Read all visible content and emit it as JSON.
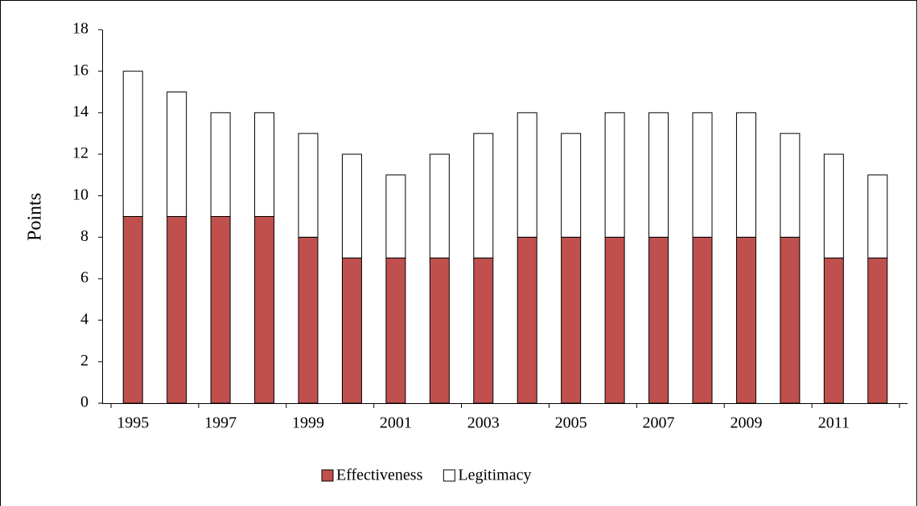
{
  "chart_data": {
    "type": "stacked-bar",
    "y_label": "Points",
    "categories": [
      "1995",
      null,
      "1997",
      null,
      "1999",
      null,
      "2001",
      null,
      "2003",
      null,
      "2005",
      null,
      "2007",
      null,
      "2009",
      null,
      "2011",
      null
    ],
    "series": [
      {
        "name": "Effectiveness",
        "color": "#c0504d",
        "values": [
          9,
          9,
          9,
          9,
          8,
          7,
          7,
          7,
          7,
          8,
          8,
          8,
          8,
          8,
          8,
          8,
          7,
          7
        ]
      },
      {
        "name": "Legitimacy",
        "color": "#ffffff",
        "values": [
          7,
          6,
          5,
          5,
          5,
          5,
          4,
          5,
          6,
          6,
          5,
          6,
          6,
          6,
          6,
          5,
          5,
          4
        ]
      }
    ],
    "ylim": [
      0,
      18
    ],
    "yticks": [
      0,
      2,
      4,
      6,
      8,
      10,
      12,
      14,
      16,
      18
    ],
    "grid": false,
    "legend": "bottom"
  }
}
